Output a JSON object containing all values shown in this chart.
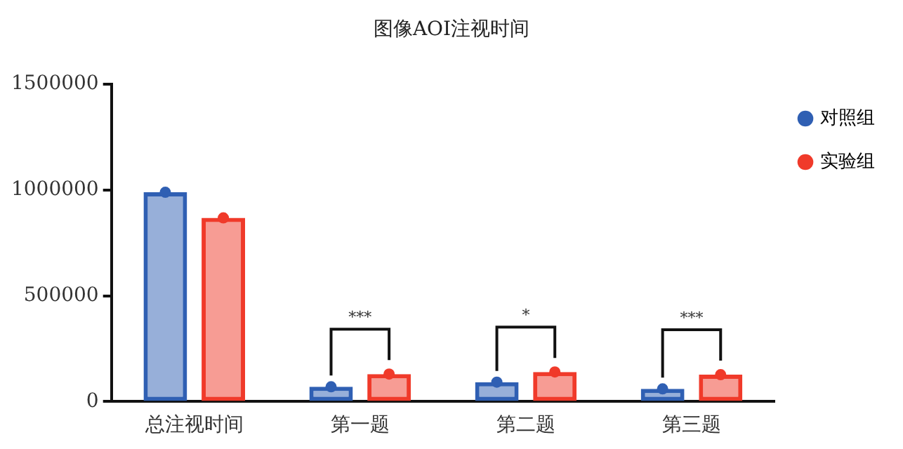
{
  "chart_data": {
    "type": "bar",
    "title": "图像AOI注视时间",
    "categories": [
      "总注视时间",
      "第一题",
      "第二题",
      "第三题"
    ],
    "series": [
      {
        "name": "对照组",
        "color": "#2f5fb3",
        "values": [
          989000,
          70000,
          92000,
          60000
        ]
      },
      {
        "name": "实验组",
        "color": "#f03a2a",
        "values": [
          868000,
          130000,
          140000,
          127000
        ]
      },
      {
        "type": "scatter",
        "color": "#2f5fb3",
        "x": [
          "总注视时间",
          "第一题",
          "第二题",
          "第三题"
        ],
        "values": [
          989000,
          70000,
          92000,
          60000
        ]
      },
      {
        "type": "scatter",
        "color": "#f03a2a",
        "x": [
          "总注视时间",
          "第一题",
          "第二题",
          "第三题"
        ],
        "values": [
          868000,
          130000,
          140000,
          127000
        ]
      }
    ],
    "ylim": [
      0,
      1500000
    ],
    "yticks": [
      0,
      500000,
      1000000,
      1500000
    ],
    "grid": false,
    "legend": "right",
    "marker": "circle",
    "annotations": [
      "***",
      "*",
      "***"
    ]
  }
}
